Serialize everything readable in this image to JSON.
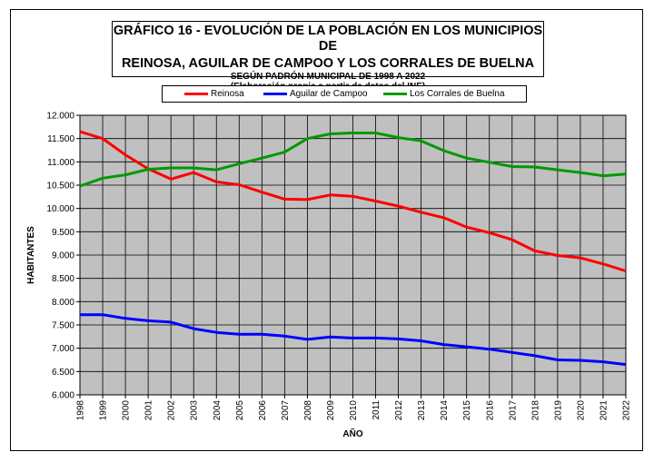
{
  "chart_data": {
    "type": "line",
    "title_lines": [
      "GRÁFICO 16 - EVOLUCIÓN DE LA POBLACIÓN EN LOS MUNICIPIOS DE",
      "REINOSA, AGUILAR DE CAMPOO Y LOS CORRALES DE BUELNA"
    ],
    "subtitle_lines": [
      "SEGÚN PADRÓN MUNICIPAL DE 1998 A 2022",
      "(Elaboración propia a partir de datos del INE)"
    ],
    "xlabel": "AÑO",
    "ylabel": "HABITANTES",
    "ylim": [
      6000,
      12000
    ],
    "y_ticks": [
      "6.000",
      "6.500",
      "7.000",
      "7.500",
      "8.000",
      "8.500",
      "9.000",
      "9.500",
      "10.000",
      "10.500",
      "11.000",
      "11.500",
      "12.000"
    ],
    "x": [
      "1998",
      "1999",
      "2000",
      "2001",
      "2002",
      "2003",
      "2004",
      "2005",
      "2006",
      "2007",
      "2008",
      "2009",
      "2010",
      "2011",
      "2012",
      "2013",
      "2014",
      "2015",
      "2016",
      "2017",
      "2018",
      "2019",
      "2020",
      "2021",
      "2022"
    ],
    "grid": true,
    "legend_position": "top",
    "plot_background": "#c0c0c0",
    "series": [
      {
        "name": "Reinosa",
        "color": "#ff0000",
        "values": [
          11650,
          11500,
          11150,
          10850,
          10630,
          10770,
          10570,
          10510,
          10350,
          10200,
          10190,
          10290,
          10260,
          10160,
          10050,
          9920,
          9800,
          9600,
          9480,
          9330,
          9090,
          8990,
          8940,
          8810,
          8660
        ]
      },
      {
        "name": "Aguilar de Campoo",
        "color": "#0000ff",
        "values": [
          7720,
          7720,
          7640,
          7590,
          7560,
          7420,
          7340,
          7300,
          7300,
          7260,
          7190,
          7240,
          7220,
          7220,
          7200,
          7160,
          7080,
          7030,
          6980,
          6910,
          6840,
          6750,
          6740,
          6710,
          6650
        ]
      },
      {
        "name": "Los Corrales de Buelna",
        "color": "#009900",
        "values": [
          10480,
          10650,
          10720,
          10840,
          10870,
          10870,
          10830,
          10960,
          11080,
          11210,
          11500,
          11600,
          11620,
          11620,
          11520,
          11450,
          11240,
          11080,
          10990,
          10900,
          10890,
          10830,
          10770,
          10700,
          10740
        ]
      }
    ]
  }
}
